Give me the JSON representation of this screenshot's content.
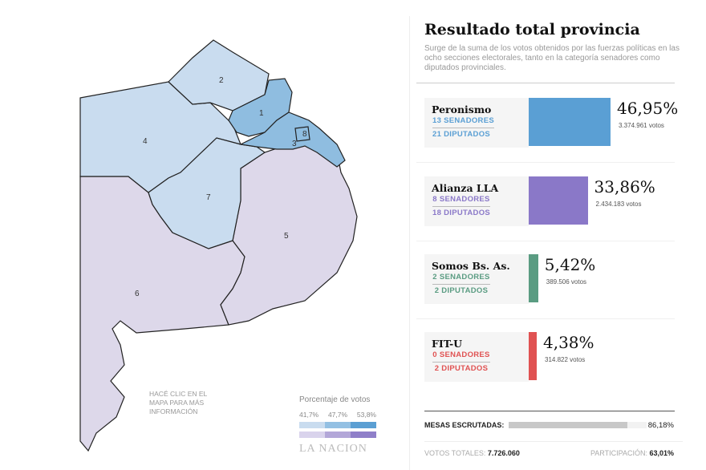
{
  "map": {
    "sections": [
      {
        "id": "1",
        "level": "high"
      },
      {
        "id": "2",
        "level": "low"
      },
      {
        "id": "3",
        "level": "high"
      },
      {
        "id": "4",
        "level": "low"
      },
      {
        "id": "5",
        "level": "purple-low"
      },
      {
        "id": "6",
        "level": "purple-low"
      },
      {
        "id": "7",
        "level": "low"
      },
      {
        "id": "8",
        "level": "high"
      }
    ],
    "hint": "HACÉ CLIC EN EL MAPA PARA MÁS INFORMACIÓN",
    "legend": {
      "title": "Porcentaje de votos",
      "ticks": [
        "41,7%",
        "47,7%",
        "53,8%"
      ],
      "blue_scale": [
        "#c9dcef",
        "#93c0e3",
        "#5b9fd3"
      ],
      "purple_scale": [
        "#d9d3ec",
        "#b3a7d8",
        "#8f7fc9"
      ]
    },
    "logo": "LA NACION",
    "colors": {
      "low": "#c9dcef",
      "high": "#8fbde0",
      "purple-low": "#ddd8ea"
    }
  },
  "panel": {
    "title": "Resultado total provincia",
    "description": "Surge de la suma de los votos obtenidos por las fuerzas políticas en las ocho secciones electorales, tanto en la categoría senadores como diputados provinciales.",
    "parties": [
      {
        "name": "Peronismo",
        "senadores": "13 SENADORES",
        "diputados": "21 DIPUTADOS",
        "percent": "46,95%",
        "pct_value": 46.95,
        "votes": "3.374.961 votos",
        "color": "#5a9fd4"
      },
      {
        "name": "Alianza LLA",
        "senadores": "8 SENADORES",
        "diputados": "18 DIPUTADOS",
        "percent": "33,86%",
        "pct_value": 33.86,
        "votes": "2.434.183 votos",
        "color": "#8a78c8"
      },
      {
        "name": "Somos Bs. As.",
        "senadores": "2 SENADORES",
        "diputados": "2 DIPUTADOS",
        "percent": "5,42%",
        "pct_value": 5.42,
        "votes": "389.506 votos",
        "color": "#5a9c82"
      },
      {
        "name": "FIT-U",
        "senadores": "0 SENADORES",
        "diputados": "2 DIPUTADOS",
        "percent": "4,38%",
        "pct_value": 4.38,
        "votes": "314.822 votos",
        "color": "#e05252"
      }
    ],
    "mesas_label": "MESAS ESCRUTADAS:",
    "mesas_value": "86,18%",
    "mesas_fraction": 0.8618,
    "votos_label": "VOTOS TOTALES:",
    "votos_value": "7.726.060",
    "part_label": "PARTICIPACIÓN:",
    "part_value": "63,01%"
  }
}
